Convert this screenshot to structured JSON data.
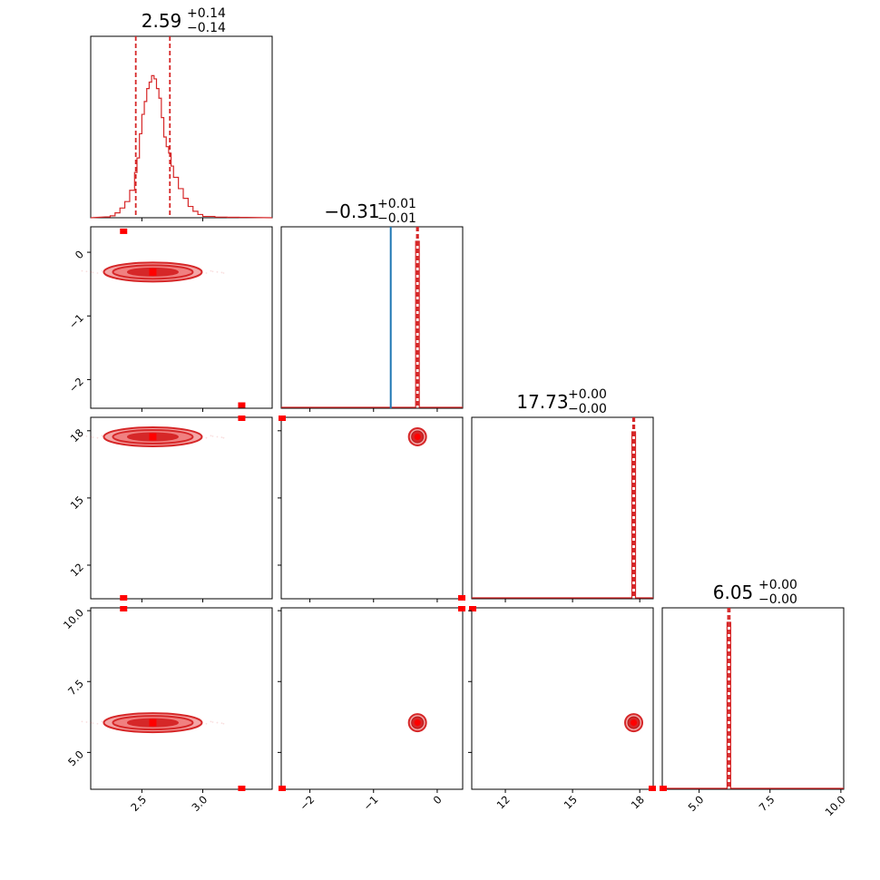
{
  "chart_data": {
    "type": "corner",
    "colors": {
      "primary": "#d62728",
      "secondary": "#1f77b4",
      "fill_light": "#f4a6a6",
      "marker": "#ff0000"
    },
    "parameters": [
      {
        "index": 0,
        "range": [
          2.08,
          3.57
        ],
        "ticks": [
          2.5,
          3.0
        ],
        "tick_labels": [
          "2.5",
          "3.0"
        ],
        "title": {
          "value": "2.59",
          "upper": "+0.14",
          "lower": "−0.14"
        },
        "quantiles": [
          2.45,
          2.73
        ]
      },
      {
        "index": 1,
        "range": [
          -2.45,
          0.4
        ],
        "ticks": [
          0,
          -1,
          -2
        ],
        "tick_labels": [
          "0",
          "−1",
          "−2"
        ],
        "title": {
          "value": "−0.31",
          "upper": "+0.01",
          "lower": "−0.01"
        },
        "quantiles": [
          -0.32,
          -0.3
        ],
        "secondary_line": -0.73
      },
      {
        "index": 2,
        "range": [
          10.5,
          18.6
        ],
        "ticks": [
          18,
          15,
          12
        ],
        "tick_labels": [
          "18",
          "15",
          "12"
        ],
        "title": {
          "value": "17.73",
          "upper": "+0.00",
          "lower": "−0.00"
        },
        "quantiles": [
          17.7,
          17.76
        ]
      },
      {
        "index": 3,
        "range": [
          3.7,
          10.1
        ],
        "ticks": [
          10.0,
          7.5,
          5.0
        ],
        "tick_labels": [
          "10.0",
          "7.5",
          "5.0"
        ],
        "title": {
          "value": "6.05",
          "upper": "+0.00",
          "lower": "−0.00"
        },
        "quantiles": [
          6.02,
          6.08
        ]
      }
    ],
    "hist0_bins": [
      [
        2.2,
        0.005
      ],
      [
        2.24,
        0.012
      ],
      [
        2.28,
        0.03
      ],
      [
        2.32,
        0.06
      ],
      [
        2.36,
        0.1
      ],
      [
        2.4,
        0.17
      ],
      [
        2.44,
        0.28
      ],
      [
        2.46,
        0.37
      ],
      [
        2.48,
        0.52
      ],
      [
        2.5,
        0.64
      ],
      [
        2.52,
        0.72
      ],
      [
        2.54,
        0.8
      ],
      [
        2.56,
        0.84
      ],
      [
        2.58,
        0.88
      ],
      [
        2.6,
        0.86
      ],
      [
        2.62,
        0.8
      ],
      [
        2.64,
        0.74
      ],
      [
        2.66,
        0.62
      ],
      [
        2.68,
        0.5
      ],
      [
        2.7,
        0.44
      ],
      [
        2.72,
        0.4
      ],
      [
        2.74,
        0.32
      ],
      [
        2.76,
        0.25
      ],
      [
        2.8,
        0.18
      ],
      [
        2.84,
        0.12
      ],
      [
        2.88,
        0.07
      ],
      [
        2.92,
        0.04
      ],
      [
        2.96,
        0.02
      ],
      [
        3.0,
        0.008
      ],
      [
        3.1,
        0.004
      ],
      [
        3.2,
        0.003
      ],
      [
        3.3,
        0.002
      ]
    ],
    "contour_center": {
      "x": 2.59,
      "y1": -0.31,
      "y2": 17.73,
      "y3": 6.05
    },
    "outlier_markers": [
      {
        "panel": "1-0",
        "x": 2.35,
        "y": 0.33
      },
      {
        "panel": "1-0",
        "x": 3.32,
        "y": -2.4
      },
      {
        "panel": "2-0",
        "x": 3.32,
        "y": 18.6
      },
      {
        "panel": "2-0",
        "x": 2.35,
        "y": 10.5
      },
      {
        "panel": "3-0",
        "x": 2.35,
        "y": 10.1
      },
      {
        "panel": "3-0",
        "x": 3.32,
        "y": 3.7
      },
      {
        "panel": "2-1",
        "x": -2.45,
        "y": 18.6
      },
      {
        "panel": "2-1",
        "x": 0.4,
        "y": 10.5
      },
      {
        "panel": "3-1",
        "x": 0.4,
        "y": 10.1
      },
      {
        "panel": "3-1",
        "x": -2.45,
        "y": 3.7
      },
      {
        "panel": "3-2",
        "x": 10.5,
        "y": 10.1
      },
      {
        "panel": "3-2",
        "x": 18.6,
        "y": 3.7
      },
      {
        "panel": "3-3",
        "x": 3.7,
        "y": 0.0
      }
    ]
  }
}
